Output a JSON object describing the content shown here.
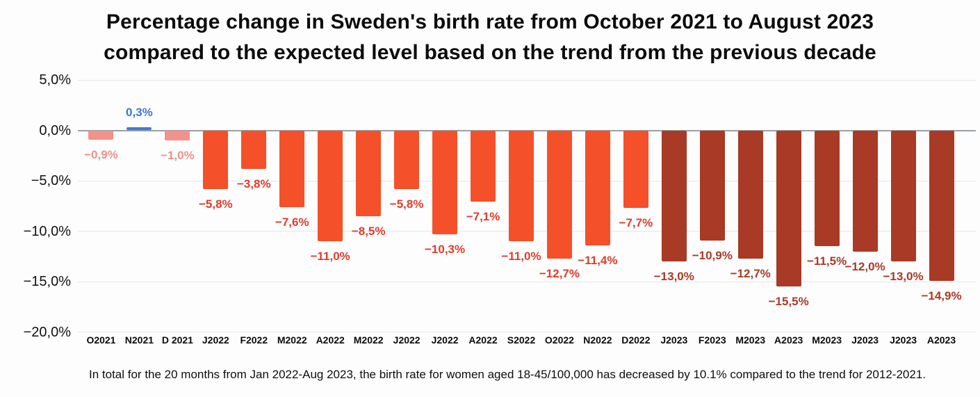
{
  "title": {
    "line1": "Percentage change in Sweden's birth rate from October 2021 to August 2023",
    "line2": "compared to the expected level based on the trend from the previous decade"
  },
  "footnote": "In total for the 20 months from Jan 2022-Aug 2023, the birth rate for women aged 18-45/100,000 has decreased by 10.1% compared to the trend for 2012-2021.",
  "colors": {
    "background": "#fdfdfe",
    "grid": "#e6e6e6",
    "zero_axis": "#9a9fa5",
    "axis_text": "#111111",
    "series": {
      "pink": {
        "bar": "#f2928a",
        "label": "#ee918a"
      },
      "blue": {
        "bar": "#3e7ad7",
        "label": "#3c76d5"
      },
      "orange": {
        "bar": "#f4502a",
        "label": "#e23b2b"
      },
      "brick": {
        "bar": "#a93a25",
        "label": "#a93a25"
      }
    }
  },
  "chart_data": {
    "type": "bar",
    "title": "Percentage change in Sweden's birth rate from October 2021 to August 2023 compared to the expected level based on the trend from the previous decade",
    "categories": [
      "O2021",
      "N2021",
      "D 2021",
      "J2022",
      "F2022",
      "M2022",
      "A2022",
      "M2022",
      "J2022",
      "J2022",
      "A2022",
      "S2022",
      "O2022",
      "N2022",
      "D2022",
      "J2023",
      "F2023",
      "M2023",
      "A2023",
      "M2023",
      "J2023",
      "J2023",
      "A2023"
    ],
    "values": [
      -0.9,
      0.3,
      -1.0,
      -5.8,
      -3.8,
      -7.6,
      -11.0,
      -8.5,
      -5.8,
      -10.3,
      -7.1,
      -11.0,
      -12.7,
      -11.4,
      -7.7,
      -13.0,
      -10.9,
      -12.7,
      -15.5,
      -11.5,
      -12.0,
      -13.0,
      -14.9
    ],
    "value_labels": [
      "−0,9%",
      "0,3%",
      "−1,0%",
      "−5,8%",
      "−3,8%",
      "−7,6%",
      "−11,0%",
      "−8,5%",
      "−5,8%",
      "−10,3%",
      "−7,1%",
      "−11,0%",
      "−12,7%",
      "−11,4%",
      "−7,7%",
      "−13,0%",
      "−10,9%",
      "−12,7%",
      "−15,5%",
      "−11,5%",
      "−12,0%",
      "−13,0%",
      "−14,9%"
    ],
    "bar_style": [
      "pink",
      "blue",
      "pink",
      "orange",
      "orange",
      "orange",
      "orange",
      "orange",
      "orange",
      "orange",
      "orange",
      "orange",
      "orange",
      "orange",
      "orange",
      "brick",
      "brick",
      "brick",
      "brick",
      "brick",
      "brick",
      "brick",
      "brick"
    ],
    "y_ticks": [
      {
        "label": "5,0%",
        "value": 5
      },
      {
        "label": "0,0%",
        "value": 0
      },
      {
        "label": "−5,0%",
        "value": -5
      },
      {
        "label": "−10,0%",
        "value": -10
      },
      {
        "label": "−15,0%",
        "value": -15
      },
      {
        "label": "−20,0%",
        "value": -20
      }
    ],
    "ylim": [
      -20,
      5
    ],
    "grid": true,
    "legend": "none",
    "xlabel": "",
    "ylabel": ""
  }
}
